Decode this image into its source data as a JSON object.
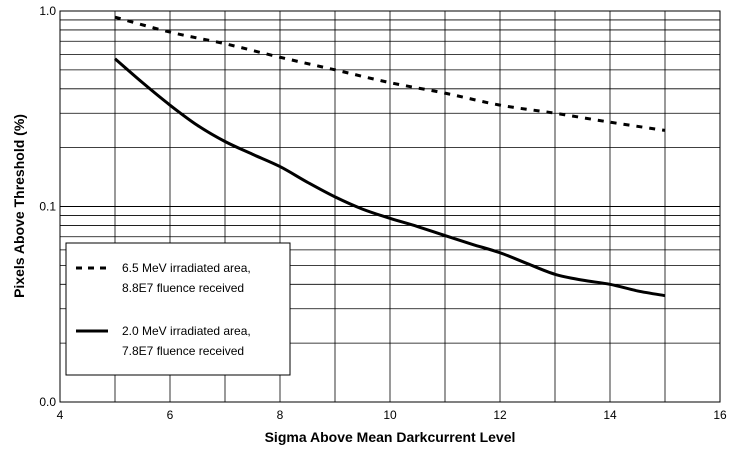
{
  "chart_data": {
    "type": "line",
    "title": "",
    "xlabel": "Sigma Above Mean Darkcurrent Level",
    "ylabel": "Pixels Above Threshold (%)",
    "xlim": [
      4,
      16
    ],
    "ylim": [
      0.01,
      1.0
    ],
    "y_scale": "log",
    "grid": true,
    "legend_position": "bottom-left",
    "x_ticks": [
      4,
      6,
      8,
      10,
      12,
      14,
      16
    ],
    "x_tick_labels": [
      "4",
      "6",
      "8",
      "10",
      "12",
      "14",
      "16"
    ],
    "y_ticks": [
      0.01,
      0.1,
      1.0
    ],
    "y_tick_labels": [
      "0.0",
      "0.1",
      "1.0"
    ],
    "series": [
      {
        "name": "6.5 MeV irradiated area, 8.8E7 fluence received",
        "legend_lines": [
          "6.5 MeV irradiated area,",
          "8.8E7 fluence received"
        ],
        "style": "dashed",
        "color": "#000000",
        "x": [
          5,
          6,
          7,
          8,
          9,
          10,
          11,
          12,
          13,
          14,
          15
        ],
        "y": [
          0.93,
          0.78,
          0.68,
          0.58,
          0.5,
          0.43,
          0.38,
          0.33,
          0.3,
          0.27,
          0.245
        ]
      },
      {
        "name": "2.0 MeV irradiated area, 7.8E7 fluence received",
        "legend_lines": [
          "2.0 MeV irradiated area,",
          "7.8E7 fluence received"
        ],
        "style": "solid",
        "color": "#000000",
        "x": [
          5,
          5.5,
          6,
          6.5,
          7,
          7.5,
          8,
          8.5,
          9,
          9.5,
          10,
          10.5,
          11,
          11.5,
          12,
          12.5,
          13,
          13.5,
          14,
          14.5,
          15
        ],
        "y": [
          0.57,
          0.43,
          0.33,
          0.26,
          0.215,
          0.185,
          0.16,
          0.133,
          0.112,
          0.097,
          0.087,
          0.079,
          0.071,
          0.064,
          0.058,
          0.051,
          0.045,
          0.042,
          0.04,
          0.037,
          0.035
        ]
      }
    ]
  }
}
